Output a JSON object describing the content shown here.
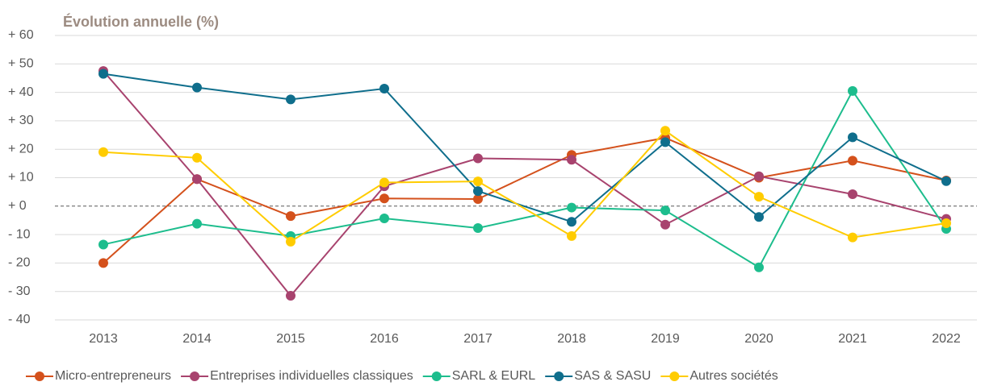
{
  "chart_data": {
    "type": "line",
    "title": "Évolution annuelle (%)",
    "categories": [
      "2013",
      "2014",
      "2015",
      "2016",
      "2017",
      "2018",
      "2019",
      "2020",
      "2021",
      "2022"
    ],
    "series": [
      {
        "name": "Micro-entrepreneurs",
        "color": "#d4511c",
        "values": [
          -20,
          9.5,
          -3.5,
          2.7,
          2.5,
          18,
          24,
          10,
          16,
          9
        ]
      },
      {
        "name": "Entreprises individuelles classiques",
        "color": "#a8436e",
        "values": [
          47.5,
          9.5,
          -31.5,
          7,
          16.8,
          16.3,
          -6.5,
          10.5,
          4.2,
          -4.5
        ]
      },
      {
        "name": "SARL & EURL",
        "color": "#1dbd8d",
        "values": [
          -13.5,
          -6.2,
          -10.5,
          -4.3,
          -7.7,
          -0.5,
          -1.5,
          -21.5,
          40.5,
          -8
        ]
      },
      {
        "name": "SAS & SASU",
        "color": "#0f6e8c",
        "values": [
          46.5,
          41.7,
          37.5,
          41.3,
          5.3,
          -5.5,
          22.5,
          -3.8,
          24.2,
          8.8
        ]
      },
      {
        "name": "Autres sociétés",
        "color": "#ffcc00",
        "values": [
          19,
          17,
          -12.5,
          8.3,
          8.7,
          -10.5,
          26.5,
          3.3,
          -11,
          -6
        ]
      }
    ],
    "ylim": [
      -40,
      60
    ],
    "yticks": [
      {
        "value": 60,
        "label": "+ 60"
      },
      {
        "value": 50,
        "label": "+ 50"
      },
      {
        "value": 40,
        "label": "+ 40"
      },
      {
        "value": 30,
        "label": "+ 30"
      },
      {
        "value": 20,
        "label": "+ 20"
      },
      {
        "value": 10,
        "label": "+ 10"
      },
      {
        "value": 0,
        "label": "+ 0"
      },
      {
        "value": -10,
        "label": "- 10"
      },
      {
        "value": -20,
        "label": "- 20"
      },
      {
        "value": -30,
        "label": "- 30"
      },
      {
        "value": -40,
        "label": "- 40"
      }
    ],
    "grid": true,
    "legend": "bottom"
  }
}
